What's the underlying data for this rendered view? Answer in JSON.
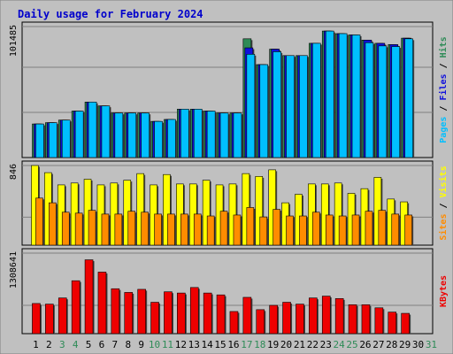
{
  "chart_data": [
    {
      "type": "bar",
      "title": "Daily usage for February 2024",
      "panel": "hits-files-pages",
      "y_tick_label": "101485",
      "ylim": [
        0,
        101485
      ],
      "right_label_parts": [
        "Pages",
        "Files",
        "Hits"
      ],
      "categories": [
        "1",
        "2",
        "3",
        "4",
        "5",
        "6",
        "7",
        "8",
        "9",
        "10",
        "11",
        "12",
        "13",
        "14",
        "15",
        "16",
        "17",
        "18",
        "19",
        "20",
        "21",
        "22",
        "23",
        "24",
        "25",
        "26",
        "27",
        "28",
        "29",
        "30",
        "31"
      ],
      "series": [
        {
          "name": "Hits",
          "values": [
            26000,
            27000,
            29000,
            36000,
            43000,
            40000,
            34500,
            34500,
            34500,
            28000,
            29500,
            37500,
            37500,
            36000,
            34500,
            34500,
            92000,
            72000,
            84000,
            79000,
            79000,
            88500,
            98000,
            96000,
            95000,
            91000,
            88500,
            87500,
            92500,
            null,
            null
          ]
        },
        {
          "name": "Files",
          "values": [
            26000,
            27000,
            29000,
            36000,
            43000,
            40000,
            34500,
            34500,
            34500,
            28000,
            29500,
            37500,
            37500,
            36000,
            34500,
            34500,
            85000,
            72000,
            84000,
            79000,
            79000,
            88500,
            98000,
            96000,
            95000,
            91000,
            88500,
            87500,
            92500,
            null,
            null
          ]
        },
        {
          "name": "Pages",
          "values": [
            26000,
            27000,
            29000,
            36000,
            43000,
            40000,
            34500,
            34500,
            34500,
            28000,
            29500,
            37500,
            37500,
            36000,
            34500,
            34500,
            80000,
            72000,
            82000,
            79000,
            79000,
            88500,
            98000,
            96000,
            95000,
            89000,
            86500,
            86000,
            92000,
            null,
            null
          ]
        }
      ],
      "weekend_days": [
        "3",
        "4",
        "10",
        "11",
        "17",
        "18",
        "24",
        "25",
        "31"
      ]
    },
    {
      "type": "bar",
      "panel": "visits-sites",
      "y_tick_label": "846",
      "ylim": [
        0,
        846
      ],
      "right_label_parts": [
        "Sites",
        "Visits"
      ],
      "categories": [
        "1",
        "2",
        "3",
        "4",
        "5",
        "6",
        "7",
        "8",
        "9",
        "10",
        "11",
        "12",
        "13",
        "14",
        "15",
        "16",
        "17",
        "18",
        "19",
        "20",
        "21",
        "22",
        "23",
        "24",
        "25",
        "26",
        "27",
        "28",
        "29",
        "30",
        "31"
      ],
      "series": [
        {
          "name": "Visits",
          "values": [
            846,
            770,
            640,
            660,
            700,
            640,
            660,
            690,
            760,
            640,
            750,
            650,
            650,
            690,
            640,
            650,
            760,
            730,
            800,
            450,
            540,
            650,
            650,
            660,
            550,
            600,
            720,
            490,
            460,
            null,
            null
          ]
        },
        {
          "name": "Sites",
          "values": [
            500,
            450,
            350,
            340,
            370,
            330,
            330,
            360,
            350,
            330,
            330,
            330,
            330,
            310,
            360,
            320,
            400,
            300,
            380,
            310,
            310,
            350,
            320,
            310,
            320,
            360,
            370,
            330,
            320,
            null,
            null
          ]
        }
      ]
    },
    {
      "type": "bar",
      "panel": "kbytes",
      "y_tick_label": "1308641",
      "ylim": [
        0,
        1308641
      ],
      "right_label_parts": [
        "KBytes"
      ],
      "categories": [
        "1",
        "2",
        "3",
        "4",
        "5",
        "6",
        "7",
        "8",
        "9",
        "10",
        "11",
        "12",
        "13",
        "14",
        "15",
        "16",
        "17",
        "18",
        "19",
        "20",
        "21",
        "22",
        "23",
        "24",
        "25",
        "26",
        "27",
        "28",
        "29",
        "30",
        "31"
      ],
      "series": [
        {
          "name": "KBytes",
          "values": [
            490000,
            480000,
            580000,
            860000,
            1200000,
            1000000,
            730000,
            670000,
            720000,
            510000,
            680000,
            660000,
            750000,
            660000,
            630000,
            360000,
            590000,
            390000,
            460000,
            510000,
            480000,
            580000,
            610000,
            570000,
            470000,
            470000,
            420000,
            350000,
            330000,
            null,
            null
          ]
        }
      ]
    }
  ],
  "colors": {
    "hits": "#2e8b57",
    "files": "#1010dd",
    "pages": "#00bfff",
    "visits": "#ffff00",
    "sites": "#ff8c00",
    "kbytes": "#ee0000",
    "title": "#0000cc",
    "weekend": "#2e8b57",
    "weekday": "#000000",
    "plot_bg": "#c0c0c0"
  }
}
